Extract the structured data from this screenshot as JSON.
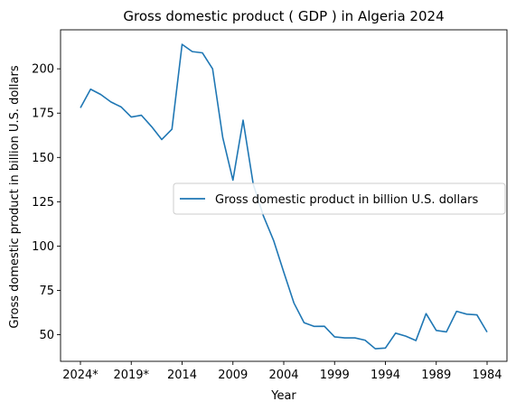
{
  "chart_data": {
    "type": "line",
    "title": "Gross domestic product ( GDP ) in Algeria 2024",
    "xlabel": "Year",
    "ylabel": "Gross domestic product in billion U.S. dollars",
    "x": [
      "2024*",
      "2023*",
      "2022*",
      "2021*",
      "2020*",
      "2019*",
      "2018*",
      "2017*",
      "2016",
      "2015",
      "2014",
      "2013",
      "2012",
      "2011",
      "2010",
      "2009",
      "2008",
      "2007",
      "2006",
      "2005",
      "2004",
      "2003",
      "2002",
      "2001",
      "2000",
      "1999",
      "1998",
      "1997",
      "1996",
      "1995",
      "1994",
      "1993",
      "1992",
      "1991",
      "1990",
      "1989",
      "1988",
      "1987",
      "1986",
      "1985",
      "1984"
    ],
    "xticks": [
      "2024*",
      "2019*",
      "2014",
      "2009",
      "2004",
      "1999",
      "1994",
      "1989",
      "1984"
    ],
    "yticks": [
      50,
      75,
      100,
      125,
      150,
      175,
      200
    ],
    "ylim": [
      35,
      222
    ],
    "grid": false,
    "legend_position": "center-right",
    "series": [
      {
        "name": "Gross domestic product in billion U.S. dollars",
        "color": "#1f77b4",
        "values": [
          178.0,
          188.5,
          185.5,
          181.3,
          178.5,
          172.8,
          173.8,
          167.4,
          160.1,
          165.9,
          213.8,
          209.7,
          209.0,
          200.0,
          161.2,
          137.2,
          171.0,
          134.9,
          117.0,
          103.2,
          85.3,
          67.9,
          56.8,
          54.7,
          54.8,
          48.8,
          48.2,
          48.2,
          46.9,
          42.1,
          42.5,
          50.9,
          49.2,
          46.7,
          61.9,
          52.4,
          51.6,
          63.2,
          61.6,
          61.2,
          51.5
        ]
      }
    ]
  }
}
